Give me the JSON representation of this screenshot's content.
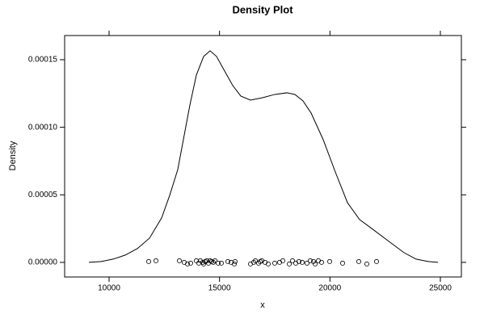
{
  "chart_data": {
    "type": "line",
    "title": "Density Plot",
    "xlabel": "x",
    "ylabel": "Density",
    "color": "#000000",
    "x": [
      9085,
      9634,
      10183,
      10732,
      11280,
      11829,
      12378,
      12744,
      13110,
      13659,
      13951,
      14280,
      14573,
      14866,
      15232,
      15598,
      15963,
      16402,
      16951,
      17500,
      18049,
      18415,
      18780,
      19146,
      19695,
      20244,
      20793,
      21341,
      21890,
      22622,
      23354,
      23902,
      24451,
      24890
    ],
    "values": [
      0,
      6e-07,
      2.4e-06,
      5.4e-06,
      1.02e-05,
      1.79e-05,
      3.29e-05,
      4.96e-05,
      6.87e-05,
      0.0001165,
      0.0001386,
      0.0001524,
      0.0001566,
      0.0001524,
      0.0001416,
      0.0001309,
      0.0001231,
      0.0001201,
      0.0001219,
      0.0001243,
      0.0001255,
      0.0001243,
      0.0001195,
      0.0001106,
      9.08e-05,
      6.69e-05,
      4.42e-05,
      3.17e-05,
      2.51e-05,
      1.61e-05,
      7.2e-06,
      2.4e-06,
      6e-07,
      0
    ],
    "points": {
      "x": [
        11793,
        12122,
        13183,
        13402,
        13549,
        13695,
        13951,
        14061,
        14134,
        14244,
        14280,
        14354,
        14427,
        14500,
        14573,
        14646,
        14720,
        14793,
        14939,
        15085,
        15378,
        15524,
        15671,
        15707,
        16402,
        16549,
        16622,
        16768,
        16841,
        16915,
        17061,
        17207,
        17500,
        17720,
        17866,
        18159,
        18305,
        18451,
        18598,
        18744,
        18963,
        19110,
        19256,
        19329,
        19476,
        19622,
        19988,
        20573,
        21305,
        21671,
        22110
      ],
      "y": [
        6e-07,
        1.2e-06,
        1.2e-06,
        0.0,
        -1.2e-06,
        -6e-07,
        1.2e-06,
        -6e-07,
        1.2e-06,
        0.0,
        -1.2e-06,
        6e-07,
        1.2e-06,
        -6e-07,
        1.2e-06,
        6e-07,
        0.0,
        1.2e-06,
        -6e-07,
        -6e-07,
        6e-07,
        0.0,
        -1.2e-06,
        6e-07,
        -1.2e-06,
        0.0,
        1.2e-06,
        -6e-07,
        6e-07,
        1.2e-06,
        0.0,
        -1.2e-06,
        -6e-07,
        0.0,
        1.2e-06,
        -1.2e-06,
        1.2e-06,
        -6e-07,
        6e-07,
        0.0,
        -6e-07,
        1.2e-06,
        6e-07,
        -1.2e-06,
        1.2e-06,
        0.0,
        6e-07,
        -6e-07,
        6e-07,
        -1.2e-06,
        6e-07
      ]
    },
    "xlim": [
      7988,
      25951
    ],
    "ylim": [
      -1.08e-05,
      0.0001679
    ],
    "xticks": [
      10000,
      15000,
      20000,
      25000
    ],
    "yticks": [
      {
        "value": 0,
        "label": "0.00000"
      },
      {
        "value": 5e-05,
        "label": "0.00005"
      },
      {
        "value": 0.0001,
        "label": "0.00010"
      },
      {
        "value": 0.00015,
        "label": "0.00015"
      }
    ]
  }
}
